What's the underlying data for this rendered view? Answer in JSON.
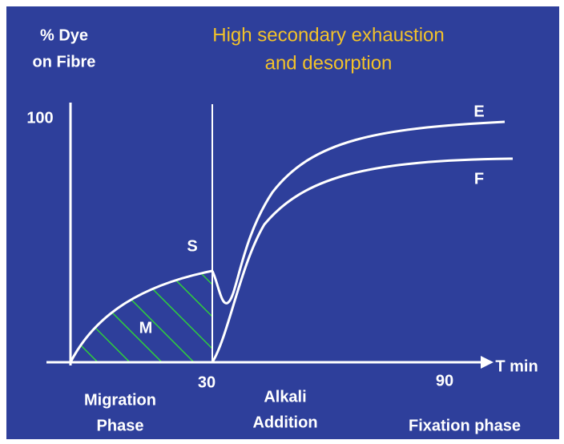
{
  "y_label": [
    "% Dye",
    "on Fibre"
  ],
  "title": [
    "High secondary exhaustion",
    "and desorption"
  ],
  "y_tick": "100",
  "curve_labels": {
    "E": "E",
    "F": "F",
    "S": "S",
    "M": "M"
  },
  "x_label": "T min",
  "x_ticks": [
    "30",
    "90"
  ],
  "phases": {
    "migration": [
      "Migration",
      "Phase"
    ],
    "alkali": [
      "Alkali",
      "Addition"
    ],
    "fixation": "Fixation phase"
  }
}
